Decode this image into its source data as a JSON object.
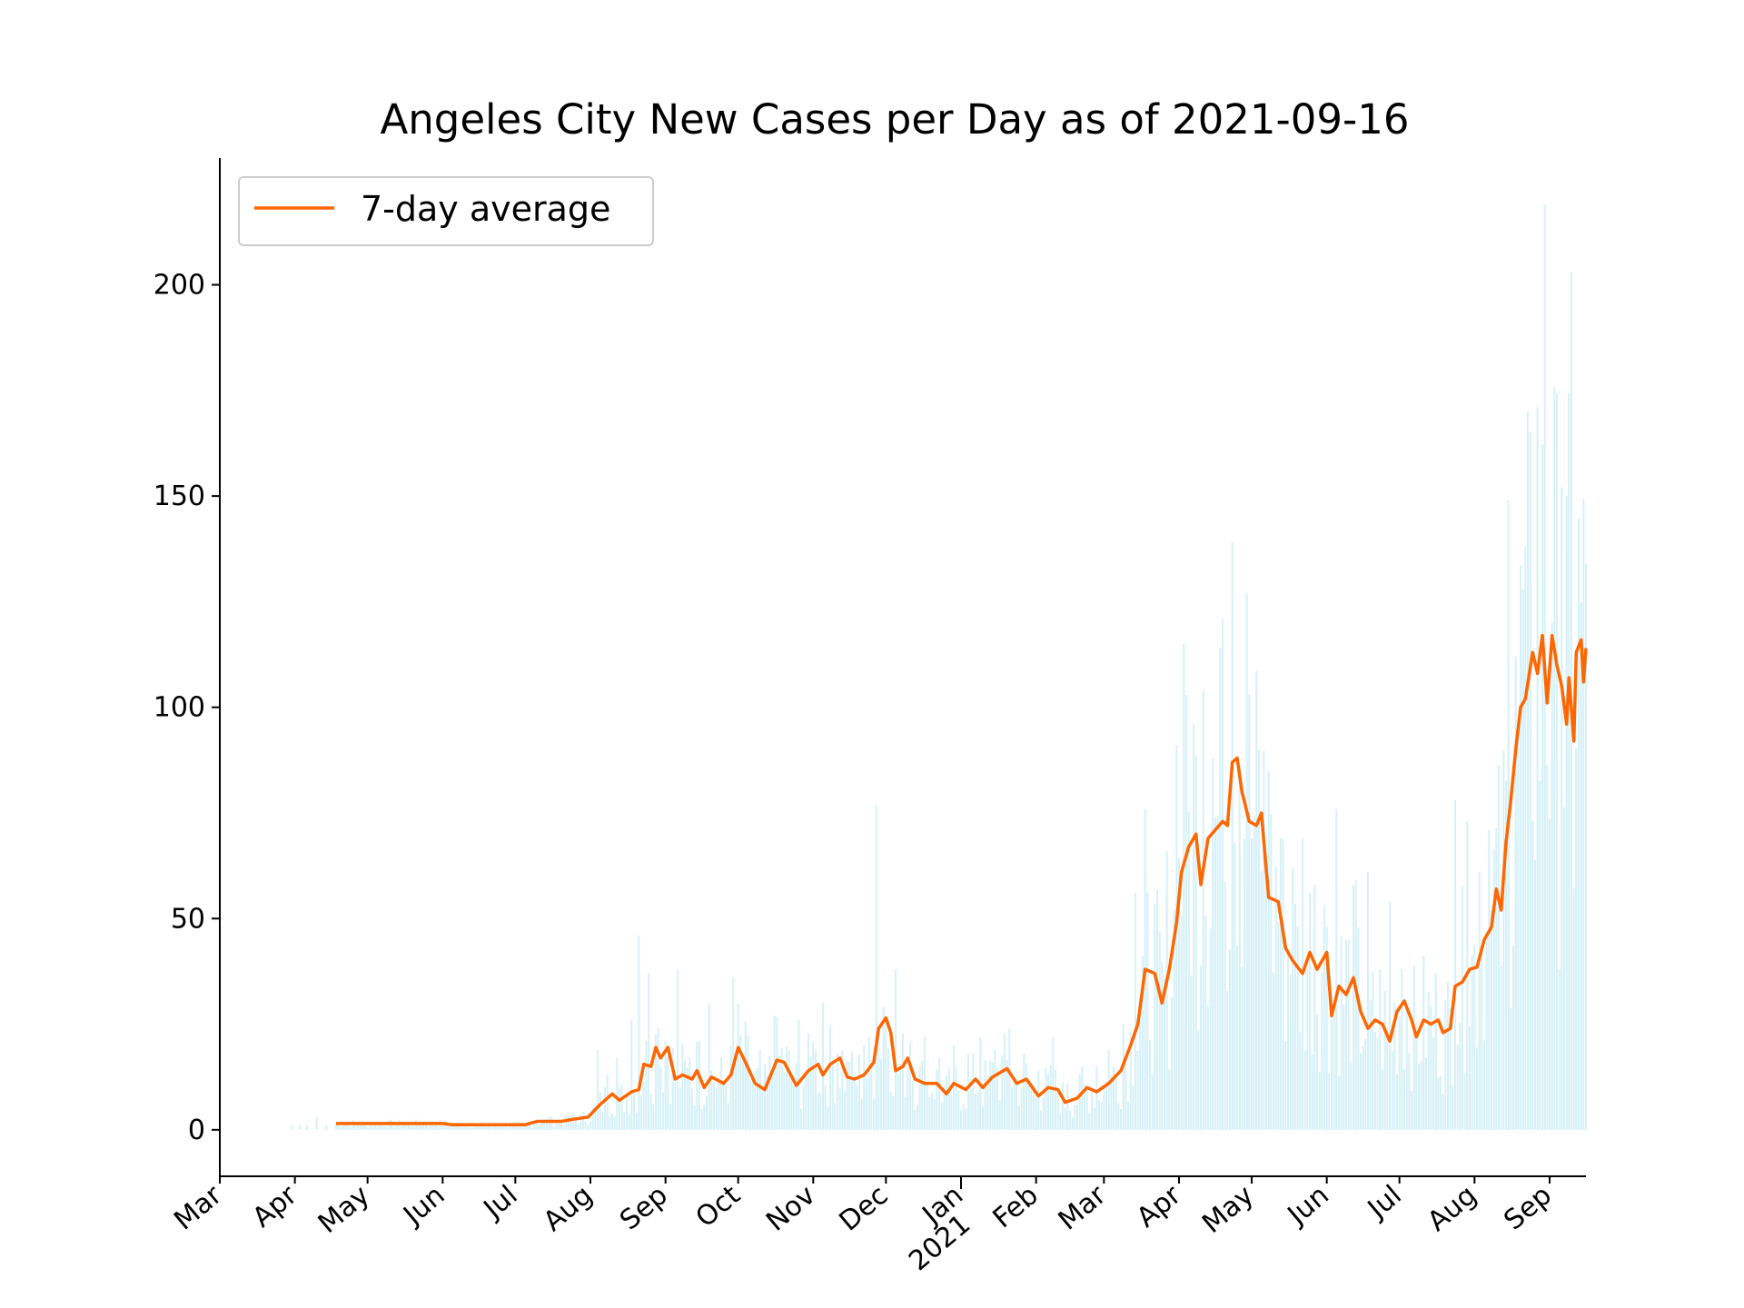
{
  "chart_data": {
    "type": "bar+line",
    "title": "Angeles City New Cases per Day as of 2021-09-16",
    "xlabel": "",
    "ylabel": "",
    "x_range": [
      "2020-03-01",
      "2021-09-16"
    ],
    "ylim": [
      -11,
      230
    ],
    "y_ticks": [
      0,
      50,
      100,
      150,
      200
    ],
    "x_ticks": [
      {
        "date": "2020-03-01",
        "label": "Mar"
      },
      {
        "date": "2020-04-01",
        "label": "Apr"
      },
      {
        "date": "2020-05-01",
        "label": "May"
      },
      {
        "date": "2020-06-01",
        "label": "Jun"
      },
      {
        "date": "2020-07-01",
        "label": "Jul"
      },
      {
        "date": "2020-08-01",
        "label": "Aug"
      },
      {
        "date": "2020-09-01",
        "label": "Sep"
      },
      {
        "date": "2020-10-01",
        "label": "Oct"
      },
      {
        "date": "2020-11-01",
        "label": "Nov"
      },
      {
        "date": "2020-12-01",
        "label": "Dec"
      },
      {
        "date": "2021-01-01",
        "label": "Jan",
        "major": "2021"
      },
      {
        "date": "2021-02-01",
        "label": "Feb"
      },
      {
        "date": "2021-03-01",
        "label": "Mar"
      },
      {
        "date": "2021-04-01",
        "label": "Apr"
      },
      {
        "date": "2021-05-01",
        "label": "May"
      },
      {
        "date": "2021-06-01",
        "label": "Jun"
      },
      {
        "date": "2021-07-01",
        "label": "Jul"
      },
      {
        "date": "2021-08-01",
        "label": "Aug"
      },
      {
        "date": "2021-09-01",
        "label": "Sep"
      }
    ],
    "grid": false,
    "legend": {
      "placement": "top-left",
      "entries": [
        "7-day average"
      ]
    },
    "colors": {
      "bars": "#d6f1f7",
      "line": "#ff6600",
      "axis": "#000000"
    },
    "series": [
      {
        "name": "7-day average",
        "kind": "line",
        "points": [
          [
            "2020-04-18",
            1.5
          ],
          [
            "2020-05-15",
            1.5
          ],
          [
            "2020-06-01",
            1.5
          ],
          [
            "2020-06-05",
            1.2
          ],
          [
            "2020-07-05",
            1.2
          ],
          [
            "2020-07-10",
            2.0
          ],
          [
            "2020-07-20",
            2.0
          ],
          [
            "2020-07-25",
            2.5
          ],
          [
            "2020-07-31",
            3.0
          ],
          [
            "2020-08-05",
            6.0
          ],
          [
            "2020-08-10",
            8.5
          ],
          [
            "2020-08-13",
            7.0
          ],
          [
            "2020-08-18",
            9.0
          ],
          [
            "2020-08-21",
            9.5
          ],
          [
            "2020-08-23",
            15.5
          ],
          [
            "2020-08-26",
            15.0
          ],
          [
            "2020-08-28",
            19.5
          ],
          [
            "2020-08-30",
            17.0
          ],
          [
            "2020-09-02",
            19.5
          ],
          [
            "2020-09-05",
            12.0
          ],
          [
            "2020-09-08",
            13.0
          ],
          [
            "2020-09-12",
            12.0
          ],
          [
            "2020-09-14",
            14.0
          ],
          [
            "2020-09-17",
            10.0
          ],
          [
            "2020-09-20",
            12.5
          ],
          [
            "2020-09-25",
            11.0
          ],
          [
            "2020-09-28",
            13.0
          ],
          [
            "2020-10-01",
            19.5
          ],
          [
            "2020-10-04",
            16.0
          ],
          [
            "2020-10-08",
            11.0
          ],
          [
            "2020-10-12",
            9.5
          ],
          [
            "2020-10-17",
            16.5
          ],
          [
            "2020-10-20",
            16.0
          ],
          [
            "2020-10-25",
            10.5
          ],
          [
            "2020-10-30",
            14.0
          ],
          [
            "2020-11-03",
            15.5
          ],
          [
            "2020-11-05",
            13.0
          ],
          [
            "2020-11-08",
            15.5
          ],
          [
            "2020-11-12",
            17.0
          ],
          [
            "2020-11-15",
            12.5
          ],
          [
            "2020-11-18",
            12.0
          ],
          [
            "2020-11-22",
            13.0
          ],
          [
            "2020-11-26",
            16.0
          ],
          [
            "2020-11-28",
            24.0
          ],
          [
            "2020-12-01",
            26.5
          ],
          [
            "2020-12-03",
            23.0
          ],
          [
            "2020-12-05",
            14.0
          ],
          [
            "2020-12-08",
            15.0
          ],
          [
            "2020-12-10",
            17.0
          ],
          [
            "2020-12-13",
            12.0
          ],
          [
            "2020-12-17",
            11.0
          ],
          [
            "2020-12-22",
            11.0
          ],
          [
            "2020-12-26",
            8.5
          ],
          [
            "2020-12-29",
            11.0
          ],
          [
            "2021-01-03",
            9.5
          ],
          [
            "2021-01-07",
            12.0
          ],
          [
            "2021-01-10",
            10.0
          ],
          [
            "2021-01-14",
            12.5
          ],
          [
            "2021-01-17",
            13.5
          ],
          [
            "2021-01-20",
            14.5
          ],
          [
            "2021-01-24",
            11.0
          ],
          [
            "2021-01-28",
            12.0
          ],
          [
            "2021-02-02",
            8.0
          ],
          [
            "2021-02-06",
            10.0
          ],
          [
            "2021-02-10",
            9.5
          ],
          [
            "2021-02-13",
            6.5
          ],
          [
            "2021-02-18",
            7.5
          ],
          [
            "2021-02-22",
            10.0
          ],
          [
            "2021-02-26",
            9.0
          ],
          [
            "2021-03-03",
            11.0
          ],
          [
            "2021-03-08",
            14.0
          ],
          [
            "2021-03-12",
            20.0
          ],
          [
            "2021-03-15",
            25.0
          ],
          [
            "2021-03-18",
            38.0
          ],
          [
            "2021-03-22",
            37.0
          ],
          [
            "2021-03-25",
            30.0
          ],
          [
            "2021-03-28",
            38.0
          ],
          [
            "2021-03-31",
            49.0
          ],
          [
            "2021-04-02",
            61.0
          ],
          [
            "2021-04-05",
            67.0
          ],
          [
            "2021-04-08",
            70.0
          ],
          [
            "2021-04-10",
            58.0
          ],
          [
            "2021-04-13",
            69.0
          ],
          [
            "2021-04-16",
            71.0
          ],
          [
            "2021-04-19",
            73.0
          ],
          [
            "2021-04-21",
            72.0
          ],
          [
            "2021-04-23",
            87.0
          ],
          [
            "2021-04-25",
            88.0
          ],
          [
            "2021-04-27",
            80.0
          ],
          [
            "2021-04-30",
            73.0
          ],
          [
            "2021-05-03",
            72.0
          ],
          [
            "2021-05-05",
            75.0
          ],
          [
            "2021-05-08",
            55.0
          ],
          [
            "2021-05-12",
            54.0
          ],
          [
            "2021-05-15",
            43.0
          ],
          [
            "2021-05-18",
            40.0
          ],
          [
            "2021-05-22",
            37.0
          ],
          [
            "2021-05-25",
            42.0
          ],
          [
            "2021-05-28",
            38.0
          ],
          [
            "2021-06-01",
            42.0
          ],
          [
            "2021-06-03",
            27.0
          ],
          [
            "2021-06-06",
            34.0
          ],
          [
            "2021-06-09",
            32.0
          ],
          [
            "2021-06-12",
            36.0
          ],
          [
            "2021-06-15",
            28.0
          ],
          [
            "2021-06-18",
            24.0
          ],
          [
            "2021-06-21",
            26.0
          ],
          [
            "2021-06-24",
            25.0
          ],
          [
            "2021-06-27",
            21.0
          ],
          [
            "2021-06-30",
            28.0
          ],
          [
            "2021-07-03",
            30.5
          ],
          [
            "2021-07-06",
            26.0
          ],
          [
            "2021-07-08",
            22.0
          ],
          [
            "2021-07-11",
            26.0
          ],
          [
            "2021-07-14",
            25.0
          ],
          [
            "2021-07-17",
            26.0
          ],
          [
            "2021-07-19",
            23.0
          ],
          [
            "2021-07-22",
            24.0
          ],
          [
            "2021-07-24",
            34.0
          ],
          [
            "2021-07-27",
            35.0
          ],
          [
            "2021-07-30",
            38.0
          ],
          [
            "2021-08-02",
            38.5
          ],
          [
            "2021-08-05",
            45.0
          ],
          [
            "2021-08-08",
            48.0
          ],
          [
            "2021-08-10",
            57.0
          ],
          [
            "2021-08-12",
            52.0
          ],
          [
            "2021-08-14",
            68.0
          ],
          [
            "2021-08-16",
            78.0
          ],
          [
            "2021-08-18",
            90.0
          ],
          [
            "2021-08-20",
            100.0
          ],
          [
            "2021-08-22",
            102.0
          ],
          [
            "2021-08-25",
            113.0
          ],
          [
            "2021-08-27",
            108.0
          ],
          [
            "2021-08-29",
            117.0
          ],
          [
            "2021-08-31",
            101.0
          ],
          [
            "2021-09-02",
            117.0
          ],
          [
            "2021-09-04",
            110.0
          ],
          [
            "2021-09-06",
            105.0
          ],
          [
            "2021-09-08",
            96.0
          ],
          [
            "2021-09-09",
            107.0
          ],
          [
            "2021-09-11",
            92.0
          ],
          [
            "2021-09-12",
            113.0
          ],
          [
            "2021-09-14",
            116.0
          ],
          [
            "2021-09-15",
            106.0
          ],
          [
            "2021-09-16",
            114.0
          ]
        ]
      },
      {
        "name": "",
        "kind": "bar",
        "points": [
          [
            "2020-03-31",
            1
          ],
          [
            "2020-04-03",
            1
          ],
          [
            "2020-04-06",
            1
          ],
          [
            "2020-04-10",
            3
          ],
          [
            "2020-04-14",
            1
          ],
          [
            "2020-07-15",
            3
          ],
          [
            "2020-07-25",
            4
          ],
          [
            "2020-08-04",
            19
          ],
          [
            "2020-08-08",
            13
          ],
          [
            "2020-08-12",
            17
          ],
          [
            "2020-08-18",
            26
          ],
          [
            "2020-08-21",
            46
          ],
          [
            "2020-08-25",
            37
          ],
          [
            "2020-08-29",
            24
          ],
          [
            "2020-09-01",
            21
          ],
          [
            "2020-09-06",
            38
          ],
          [
            "2020-09-11",
            17
          ],
          [
            "2020-09-15",
            21
          ],
          [
            "2020-09-19",
            30
          ],
          [
            "2020-09-24",
            16
          ],
          [
            "2020-09-29",
            36
          ],
          [
            "2020-10-04",
            23
          ],
          [
            "2020-10-10",
            19
          ],
          [
            "2020-10-16",
            27
          ],
          [
            "2020-10-21",
            18
          ],
          [
            "2020-10-26",
            26
          ],
          [
            "2020-11-01",
            21
          ],
          [
            "2020-11-05",
            30
          ],
          [
            "2020-11-11",
            18
          ],
          [
            "2020-11-16",
            16
          ],
          [
            "2020-11-22",
            20
          ],
          [
            "2020-11-27",
            77
          ],
          [
            "2020-11-30",
            29
          ],
          [
            "2020-12-05",
            38
          ],
          [
            "2020-12-11",
            21
          ],
          [
            "2020-12-17",
            22
          ],
          [
            "2020-12-23",
            17
          ],
          [
            "2020-12-29",
            20
          ],
          [
            "2021-01-04",
            18
          ],
          [
            "2021-01-09",
            22
          ],
          [
            "2021-01-15",
            19
          ],
          [
            "2021-01-21",
            24
          ],
          [
            "2021-01-27",
            18
          ],
          [
            "2021-02-02",
            14
          ],
          [
            "2021-02-08",
            22
          ],
          [
            "2021-02-14",
            11
          ],
          [
            "2021-02-20",
            15
          ],
          [
            "2021-02-26",
            15
          ],
          [
            "2021-03-03",
            19
          ],
          [
            "2021-03-09",
            25
          ],
          [
            "2021-03-14",
            56
          ],
          [
            "2021-03-18",
            76
          ],
          [
            "2021-03-22",
            47
          ],
          [
            "2021-03-27",
            66
          ],
          [
            "2021-03-31",
            91
          ],
          [
            "2021-04-03",
            115
          ],
          [
            "2021-04-07",
            96
          ],
          [
            "2021-04-11",
            104
          ],
          [
            "2021-04-15",
            88
          ],
          [
            "2021-04-19",
            121
          ],
          [
            "2021-04-23",
            139
          ],
          [
            "2021-04-26",
            86
          ],
          [
            "2021-04-29",
            127
          ],
          [
            "2021-05-03",
            90
          ],
          [
            "2021-05-08",
            85
          ],
          [
            "2021-05-13",
            69
          ],
          [
            "2021-05-18",
            62
          ],
          [
            "2021-05-22",
            69
          ],
          [
            "2021-05-27",
            58
          ],
          [
            "2021-06-01",
            48
          ],
          [
            "2021-06-05",
            76
          ],
          [
            "2021-06-09",
            45
          ],
          [
            "2021-06-13",
            59
          ],
          [
            "2021-06-18",
            61
          ],
          [
            "2021-06-23",
            38
          ],
          [
            "2021-06-27",
            54
          ],
          [
            "2021-07-02",
            38
          ],
          [
            "2021-07-07",
            38
          ],
          [
            "2021-07-11",
            41
          ],
          [
            "2021-07-16",
            32
          ],
          [
            "2021-07-21",
            33
          ],
          [
            "2021-07-24",
            78
          ],
          [
            "2021-07-29",
            73
          ],
          [
            "2021-08-03",
            61
          ],
          [
            "2021-08-07",
            71
          ],
          [
            "2021-08-11",
            78
          ],
          [
            "2021-08-15",
            149
          ],
          [
            "2021-08-18",
            112
          ],
          [
            "2021-08-21",
            128
          ],
          [
            "2021-08-24",
            133
          ],
          [
            "2021-08-27",
            171
          ],
          [
            "2021-08-30",
            219
          ],
          [
            "2021-09-02",
            120
          ],
          [
            "2021-09-04",
            141
          ],
          [
            "2021-09-06",
            152
          ],
          [
            "2021-09-08",
            150
          ],
          [
            "2021-09-10",
            203
          ],
          [
            "2021-09-12",
            90
          ],
          [
            "2021-09-14",
            103
          ],
          [
            "2021-09-16",
            134
          ]
        ]
      }
    ]
  }
}
